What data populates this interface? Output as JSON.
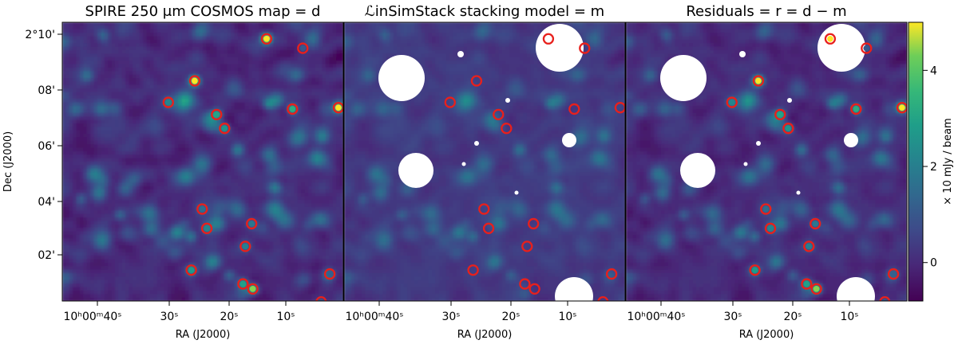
{
  "figure": {
    "panels": [
      {
        "id": "data",
        "title": "SPIRE 250 μm COSMOS map = d",
        "show_masks": false,
        "show_sources": true
      },
      {
        "id": "model",
        "title": "ℒinSimStack stacking model = m",
        "show_masks": true,
        "show_sources": false
      },
      {
        "id": "residuals",
        "title": "Residuals = r = d − m",
        "show_masks": true,
        "show_sources": true
      }
    ],
    "ra_ticks": [
      "10ʰ00ᵐ40ˢ",
      "30ˢ",
      "20ˢ",
      "10ˢ"
    ],
    "ra_label": "RA (J2000)",
    "dec_ticks": [
      "2°10'",
      "08'",
      "06'",
      "04'",
      "02'"
    ],
    "dec_label": "Dec (J2000)",
    "colorbar": {
      "label": "× 10 mJy / beam",
      "ticks": [
        "0",
        "2",
        "4"
      ],
      "tick_values": [
        0,
        2,
        4
      ],
      "range": [
        -0.8,
        5.0
      ],
      "colormap": "viridis"
    },
    "marker_color": "#e8201c"
  },
  "chart_data": {
    "type": "heatmap",
    "panels": [
      "SPIRE 250 μm COSMOS map = d",
      "ℒinSimStack stacking model = m",
      "Residuals = r = d − m"
    ],
    "xlabel": "RA (J2000)",
    "ylabel": "Dec (J2000)",
    "colorbar_label": "× 10 mJy / beam",
    "colorbar_range": [
      -0.8,
      5.0
    ],
    "colormap": "viridis",
    "sources": [
      {
        "ra_s": 23.9,
        "dec_m": 9.92,
        "flux": 5.0
      },
      {
        "ra_s": 17.6,
        "dec_m": 9.58,
        "flux": 0.6
      },
      {
        "ra_s": 36.4,
        "dec_m": 8.4,
        "flux": 4.8
      },
      {
        "ra_s": 41.0,
        "dec_m": 7.62,
        "flux": 1.8
      },
      {
        "ra_s": 32.6,
        "dec_m": 7.18,
        "flux": 2.6
      },
      {
        "ra_s": 31.2,
        "dec_m": 6.68,
        "flux": 2.2
      },
      {
        "ra_s": 19.4,
        "dec_m": 7.38,
        "flux": 2.9
      },
      {
        "ra_s": 11.4,
        "dec_m": 7.43,
        "flux": 4.7
      },
      {
        "ra_s": 8.0,
        "dec_m": 4.52,
        "flux": 0.5
      },
      {
        "ra_s": 35.1,
        "dec_m": 3.76,
        "flux": 1.2
      },
      {
        "ra_s": 34.3,
        "dec_m": 3.06,
        "flux": 1.8
      },
      {
        "ra_s": 26.5,
        "dec_m": 3.23,
        "flux": 1.4
      },
      {
        "ra_s": 27.6,
        "dec_m": 2.41,
        "flux": 1.6
      },
      {
        "ra_s": 0.3,
        "dec_m": 2.12,
        "flux": 1.0
      },
      {
        "ra_s": 37.0,
        "dec_m": 1.55,
        "flux": 2.4
      },
      {
        "ra_s": 12.9,
        "dec_m": 1.41,
        "flux": 0.8
      },
      {
        "ra_s": 28.0,
        "dec_m": 1.05,
        "flux": 2.5
      },
      {
        "ra_s": 26.3,
        "dec_m": 0.87,
        "flux": 4.0
      },
      {
        "ra_s": 14.4,
        "dec_m": 0.4,
        "flux": 0.6
      }
    ]
  }
}
